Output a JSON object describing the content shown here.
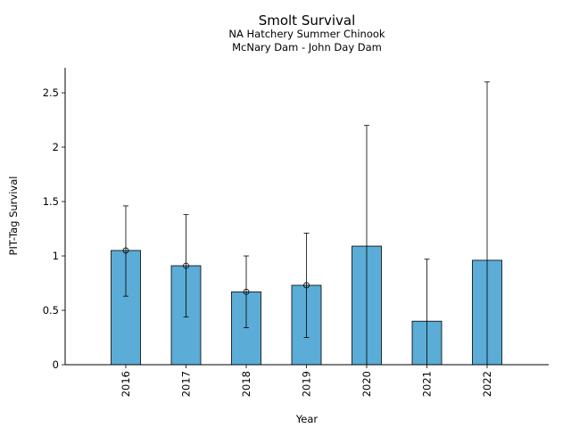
{
  "chart_data": {
    "type": "bar",
    "title": "Smolt Survival",
    "subtitle_lines": [
      "NA Hatchery Summer Chinook",
      "McNary Dam - John Day Dam"
    ],
    "xlabel": "Year",
    "ylabel": "PIT-Tag Survival",
    "categories": [
      "2016",
      "2017",
      "2018",
      "2019",
      "2020",
      "2021",
      "2022"
    ],
    "values": [
      1.05,
      0.91,
      0.67,
      0.73,
      1.09,
      0.4,
      0.96
    ],
    "error_low": [
      0.63,
      0.44,
      0.34,
      0.25,
      0.0,
      0.0,
      0.0
    ],
    "error_high": [
      1.46,
      1.38,
      1.0,
      1.21,
      2.2,
      0.97,
      2.6
    ],
    "point_markers": [
      true,
      true,
      true,
      true,
      false,
      false,
      false
    ],
    "ylim": [
      0,
      2.73
    ],
    "yticks": [
      0,
      0.5,
      1,
      1.5,
      2,
      2.5
    ],
    "ytick_labels": [
      "0",
      "0.5",
      "1",
      "1.5",
      "2",
      "2.5"
    ],
    "bar_color": "#5bacd6",
    "edge_color": "#000000",
    "grid": false,
    "legend": "none"
  }
}
